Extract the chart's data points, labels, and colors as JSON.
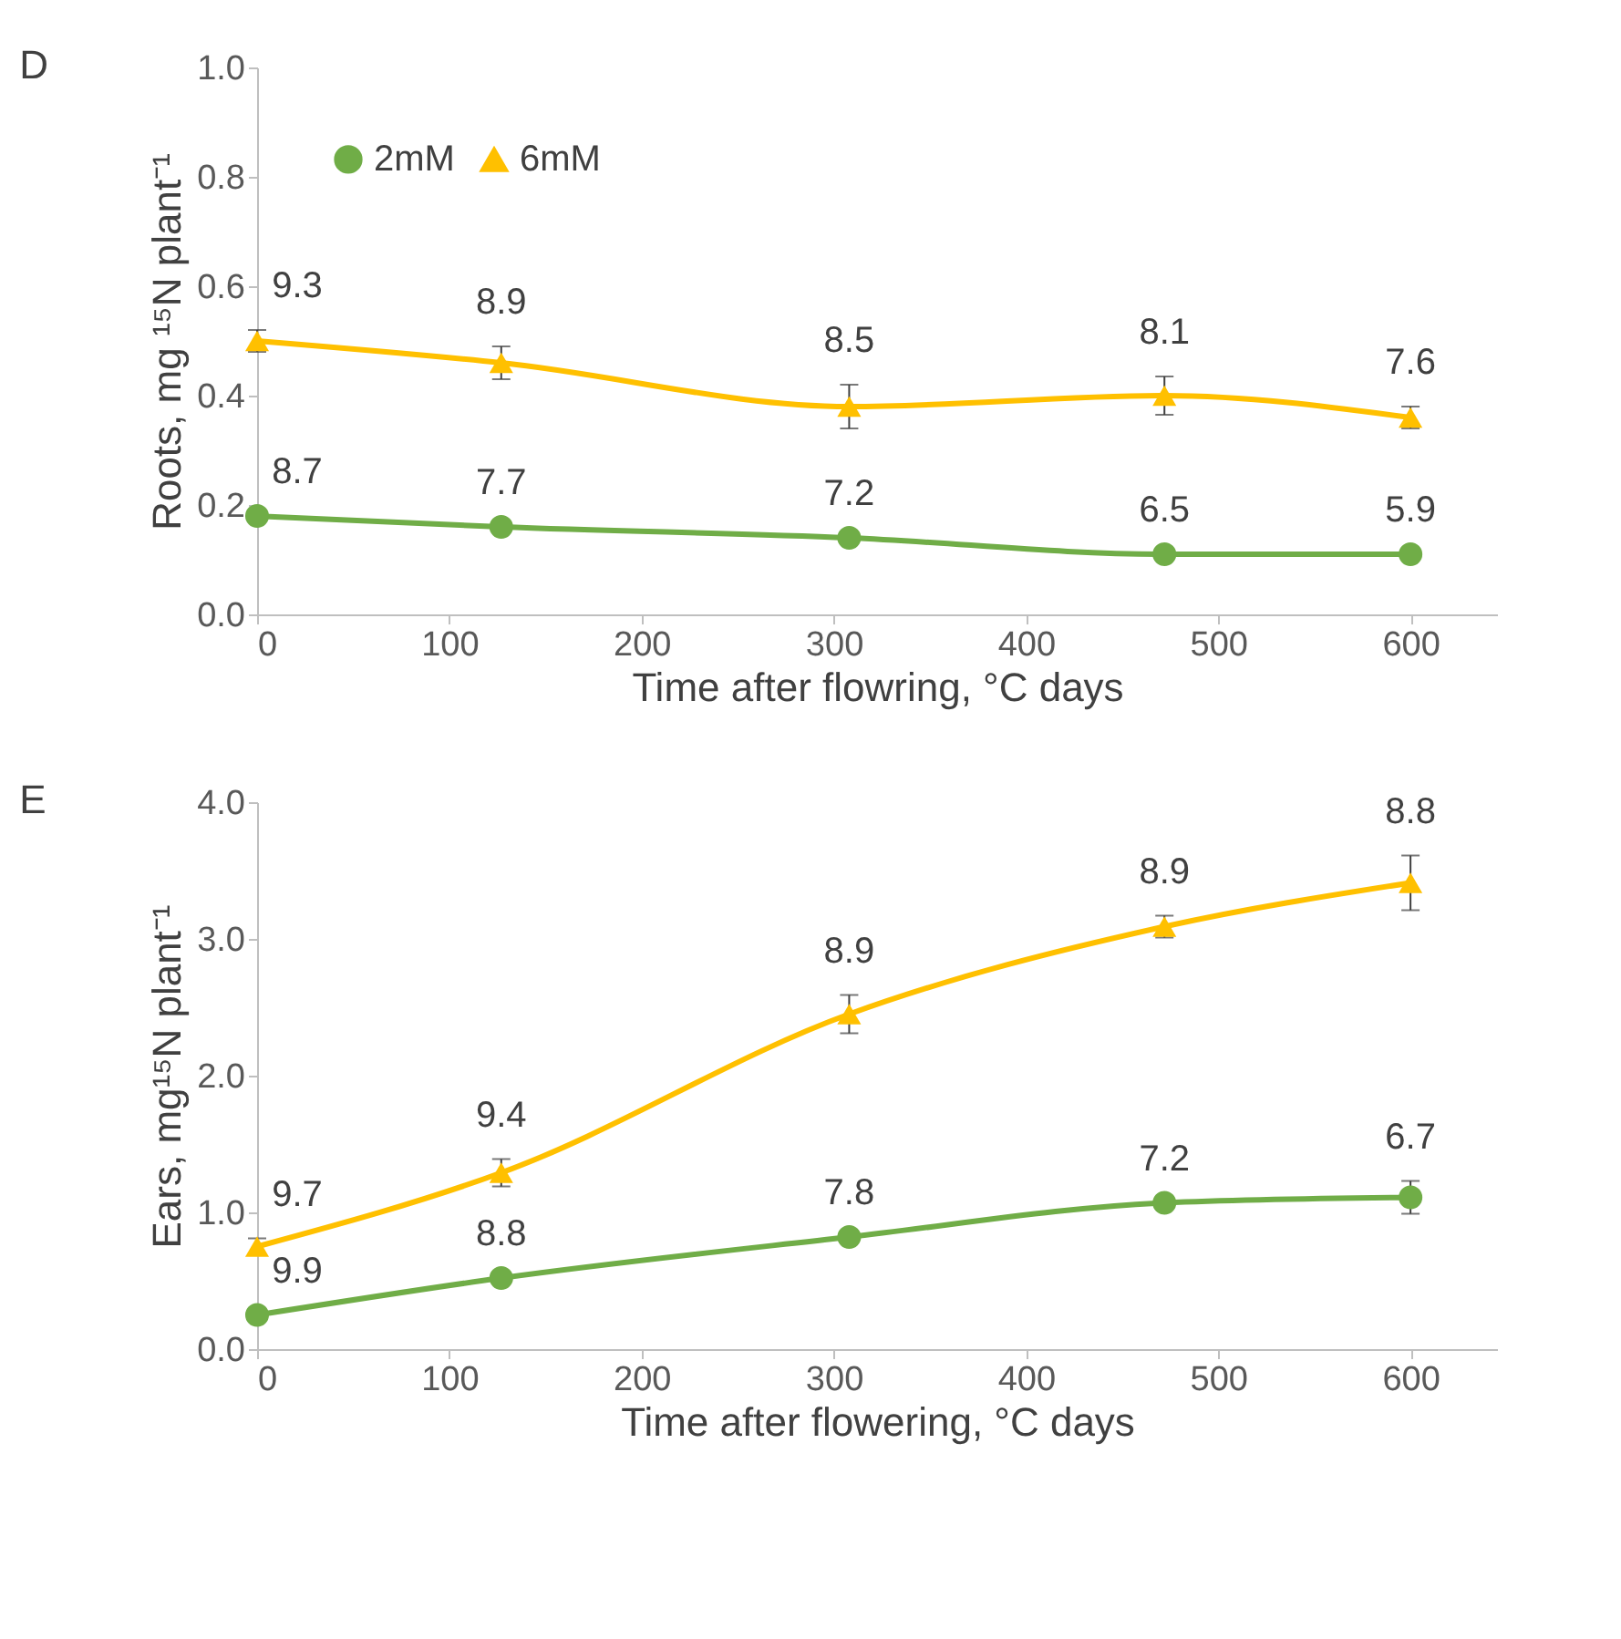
{
  "chart_data": [
    {
      "type": "line",
      "title": "D",
      "xlabel": "Time after flowring, °C days",
      "ylabel": "Roots, mg ¹⁵N plant⁻¹",
      "x": [
        0,
        127,
        308,
        472,
        600
      ],
      "xlim": [
        0,
        645
      ],
      "xticks": [
        0,
        100,
        200,
        300,
        400,
        500,
        600
      ],
      "ylim": [
        0,
        1.0
      ],
      "yticks": [
        {
          "value": 0,
          "label": "0.0"
        },
        0.2,
        0.4,
        0.6,
        0.8,
        {
          "value": 1,
          "label": "1.0"
        }
      ],
      "grid": false,
      "legend": "top left",
      "series": [
        {
          "name": "2mM",
          "color": "#70ad47",
          "marker": "circle",
          "values": [
            0.18,
            0.16,
            0.14,
            0.11,
            0.11
          ]
        },
        {
          "name": "6mM",
          "color": "#ffc000",
          "marker": "triangle",
          "values": [
            0.5,
            0.46,
            0.38,
            0.4,
            0.36
          ],
          "errors": [
            0.02,
            0.03,
            0.04,
            0.035,
            0.02
          ]
        }
      ],
      "annotations": [
        {
          "text": "8.7",
          "x": 0,
          "y": 0.18
        },
        {
          "text": "7.7",
          "x": 127,
          "y": 0.16
        },
        {
          "text": "7.2",
          "x": 308,
          "y": 0.14
        },
        {
          "text": "6.5",
          "x": 472,
          "y": 0.11
        },
        {
          "text": "5.9",
          "x": 600,
          "y": 0.11
        },
        {
          "text": "9.3",
          "x": 0,
          "y": 0.52
        },
        {
          "text": "8.9",
          "x": 127,
          "y": 0.49
        },
        {
          "text": "8.5",
          "x": 308,
          "y": 0.42
        },
        {
          "text": "8.1",
          "x": 472,
          "y": 0.435
        },
        {
          "text": "7.6",
          "x": 600,
          "y": 0.38
        }
      ]
    },
    {
      "type": "line",
      "title": "E",
      "xlabel": "Time after flowering, °C days",
      "ylabel": "Ears, mg¹⁵N plant⁻¹",
      "x": [
        0,
        127,
        308,
        472,
        600
      ],
      "xlim": [
        0,
        645
      ],
      "xticks": [
        0,
        100,
        200,
        300,
        400,
        500,
        600
      ],
      "ylim": [
        0,
        4.0
      ],
      "yticks": [
        {
          "value": 0,
          "label": "0.0"
        },
        {
          "value": 1,
          "label": "1.0"
        },
        {
          "value": 2,
          "label": "2.0"
        },
        {
          "value": 3,
          "label": "3.0"
        },
        {
          "value": 4,
          "label": "4.0"
        }
      ],
      "grid": false,
      "legend": "top left",
      "series": [
        {
          "name": "2mM",
          "color": "#70ad47",
          "marker": "circle",
          "values": [
            0.25,
            0.52,
            0.82,
            1.07,
            1.11
          ],
          "errors": [
            null,
            null,
            null,
            null,
            0.12
          ]
        },
        {
          "name": "6mM",
          "color": "#ffc000",
          "marker": "triangle",
          "values": [
            0.75,
            1.29,
            2.45,
            3.09,
            3.41
          ],
          "errors": [
            0.06,
            0.1,
            0.14,
            0.08,
            0.2
          ]
        }
      ],
      "annotations": [
        {
          "text": "9.9",
          "x": 0,
          "y": 0.25
        },
        {
          "text": "8.8",
          "x": 127,
          "y": 0.52
        },
        {
          "text": "7.8",
          "x": 308,
          "y": 0.82
        },
        {
          "text": "7.2",
          "x": 472,
          "y": 1.07
        },
        {
          "text": "6.7",
          "x": 600,
          "y": 1.23
        },
        {
          "text": "9.7",
          "x": 0,
          "y": 0.81
        },
        {
          "text": "9.4",
          "x": 127,
          "y": 1.39
        },
        {
          "text": "8.9",
          "x": 308,
          "y": 2.59
        },
        {
          "text": "8.9",
          "x": 472,
          "y": 3.17
        },
        {
          "text": "8.8",
          "x": 600,
          "y": 3.61
        }
      ]
    }
  ]
}
